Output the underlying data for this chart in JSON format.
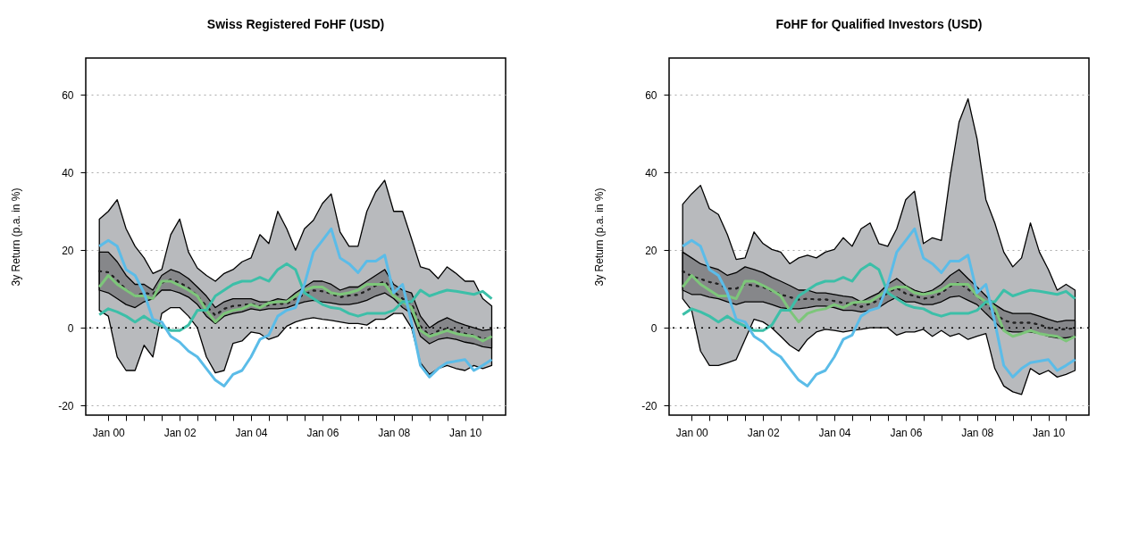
{
  "chart_data": [
    {
      "type": "line",
      "title": "Swiss Registered FoHF (USD)",
      "ylabel": "3y Return (p.a. in %)",
      "x": [
        "1999-10",
        "2000-01",
        "2000-04",
        "2000-07",
        "2000-10",
        "2001-01",
        "2001-04",
        "2001-07",
        "2001-10",
        "2002-01",
        "2002-04",
        "2002-07",
        "2002-10",
        "2003-01",
        "2003-04",
        "2003-07",
        "2003-10",
        "2004-01",
        "2004-04",
        "2004-07",
        "2004-10",
        "2005-01",
        "2005-04",
        "2005-07",
        "2005-10",
        "2006-01",
        "2006-04",
        "2006-07",
        "2006-10",
        "2007-01",
        "2007-04",
        "2007-07",
        "2007-10",
        "2008-01",
        "2008-04",
        "2008-07",
        "2008-10",
        "2009-01",
        "2009-04",
        "2009-07",
        "2009-10",
        "2010-01",
        "2010-04",
        "2010-07",
        "2010-10"
      ],
      "xlim": [
        "1999-05-15",
        "2011-02-20"
      ],
      "xticks": [
        {
          "value": "2000-01",
          "label": "Jan 00"
        },
        {
          "value": "2000-07",
          "label": null
        },
        {
          "value": "2001-01",
          "label": null
        },
        {
          "value": "2001-07",
          "label": null
        },
        {
          "value": "2002-01",
          "label": "Jan 02"
        },
        {
          "value": "2002-07",
          "label": null
        },
        {
          "value": "2003-01",
          "label": null
        },
        {
          "value": "2003-07",
          "label": null
        },
        {
          "value": "2004-01",
          "label": "Jan 04"
        },
        {
          "value": "2004-07",
          "label": null
        },
        {
          "value": "2005-01",
          "label": null
        },
        {
          "value": "2005-07",
          "label": null
        },
        {
          "value": "2006-01",
          "label": "Jan 06"
        },
        {
          "value": "2006-07",
          "label": null
        },
        {
          "value": "2007-01",
          "label": null
        },
        {
          "value": "2007-07",
          "label": null
        },
        {
          "value": "2008-01",
          "label": "Jan 08"
        },
        {
          "value": "2008-07",
          "label": null
        },
        {
          "value": "2009-01",
          "label": null
        },
        {
          "value": "2009-07",
          "label": null
        },
        {
          "value": "2010-01",
          "label": "Jan 10"
        },
        {
          "value": "2010-07",
          "label": null
        }
      ],
      "ylim": [
        -22.5,
        69.5
      ],
      "yticks": [
        -20,
        0,
        20,
        40,
        60
      ],
      "grid": "y",
      "ref_lines": [
        {
          "axis": "y",
          "value": 0,
          "color": "#000000",
          "line_style": "dotted"
        }
      ],
      "series": [
        {
          "color": "#222222",
          "line_style": "dotted",
          "values": [
            14.6,
            14.3,
            12.3,
            9.8,
            8.2,
            9,
            8.6,
            11.6,
            12.4,
            11.6,
            10.3,
            8.2,
            5.6,
            3.2,
            4.9,
            5.6,
            5.8,
            6.2,
            5.6,
            5.8,
            6.2,
            6.2,
            7.5,
            8.6,
            9.6,
            9.4,
            8.8,
            7.9,
            8.3,
            8.5,
            9.6,
            10.9,
            12,
            9.4,
            7.5,
            6.4,
            0.4,
            -2,
            -0.8,
            -0.2,
            -0.8,
            -1.5,
            -2,
            -2.8,
            -2.8
          ],
          "upper": [
            28,
            30,
            33,
            25.5,
            21,
            18,
            14,
            15,
            24,
            28,
            19.5,
            15.4,
            13.5,
            12,
            14,
            15,
            17,
            18,
            24,
            21.7,
            30,
            25.5,
            20,
            25.5,
            27.7,
            32,
            34.5,
            24.7,
            21,
            21,
            30,
            35,
            38,
            30,
            30,
            23,
            15.7,
            15,
            12.7,
            15.7,
            14,
            12,
            12,
            7.5,
            5.6
          ],
          "lower": [
            4.5,
            3,
            -7.5,
            -11,
            -11,
            -4.5,
            -7.5,
            3.7,
            5.2,
            5.2,
            3,
            0,
            -7.5,
            -11.6,
            -11,
            -4,
            -3.4,
            -1.1,
            -1.5,
            -3,
            -2.2,
            0.4,
            1.5,
            2.2,
            2.6,
            2.2,
            1.9,
            1.5,
            1.1,
            1.1,
            0.7,
            2.2,
            2.2,
            3.7,
            3.7,
            0,
            -9,
            -12,
            -10.5,
            -9.7,
            -10.5,
            -11,
            -9.7,
            -10.5,
            -9.7
          ]
        },
        {
          "color": "#222222",
          "line_style": "dotted",
          "values": [
            14.6,
            14.3,
            12.3,
            9.8,
            8.2,
            9,
            8.6,
            11.6,
            12.4,
            11.6,
            10.3,
            8.2,
            5.6,
            3.2,
            4.9,
            5.6,
            5.8,
            6.2,
            5.6,
            5.8,
            6.2,
            6.2,
            7.5,
            8.6,
            9.6,
            9.4,
            8.8,
            7.9,
            8.3,
            8.5,
            9.6,
            10.9,
            12,
            9.4,
            7.5,
            6.4,
            0.4,
            -2,
            -0.8,
            -0.2,
            -0.8,
            -1.5,
            -2,
            -2.8,
            -2.8
          ],
          "upper": [
            19.5,
            19.5,
            17,
            13.5,
            11.2,
            11.2,
            9.7,
            13.5,
            15,
            14.2,
            12.7,
            10.5,
            8.2,
            5.2,
            6.7,
            7.5,
            7.5,
            7.5,
            6.7,
            6.7,
            7.5,
            7.1,
            9,
            10.5,
            12,
            12,
            11.2,
            9.7,
            10.5,
            10.5,
            12,
            13.5,
            15,
            11.2,
            9.7,
            9,
            3,
            0,
            1.5,
            2.6,
            1.5,
            0.7,
            0,
            -0.7,
            -0.4
          ],
          "lower": [
            9.7,
            9,
            7.5,
            6,
            5.2,
            6.7,
            7.5,
            9.7,
            9.7,
            9,
            7.9,
            6,
            3,
            1.1,
            3,
            3.7,
            4.1,
            4.9,
            4.5,
            4.9,
            4.9,
            5.2,
            6,
            6.7,
            7.1,
            6.7,
            6.4,
            6,
            6,
            6.4,
            7.1,
            8.2,
            9,
            7.5,
            5.2,
            3.7,
            -2.2,
            -4.1,
            -3,
            -2.6,
            -3,
            -3.7,
            -4.1,
            -4.9,
            -5.2
          ]
        },
        {
          "color": "#7dc67a",
          "values": [
            10.5,
            13.5,
            11.2,
            9.7,
            8.2,
            8.2,
            7.5,
            12,
            12,
            10.9,
            9.7,
            8.2,
            4.5,
            1.5,
            3.7,
            4.5,
            4.9,
            6,
            5.2,
            6.4,
            6.7,
            6.7,
            8.2,
            9.7,
            10.5,
            10.5,
            9,
            8.6,
            9,
            9.7,
            11.2,
            11.2,
            11.2,
            8.2,
            6.7,
            5.2,
            -0.7,
            -2.2,
            -1.5,
            -0.7,
            -1.5,
            -1.9,
            -2.2,
            -3.4,
            -2.2
          ]
        },
        {
          "color": "#3cbfa8",
          "values": [
            3.4,
            4.9,
            4.1,
            3,
            1.5,
            3,
            1.5,
            0.4,
            -0.7,
            -0.7,
            0.7,
            4.5,
            4.5,
            8.2,
            9.7,
            11.2,
            12,
            12,
            13,
            12,
            15,
            16.5,
            15,
            9,
            7.5,
            6,
            5.2,
            4.9,
            3.7,
            3,
            3.7,
            3.7,
            3.7,
            4.5,
            6.7,
            6.7,
            9.7,
            8.2,
            9,
            9.7,
            9.4,
            9,
            8.6,
            9.4,
            7.5
          ]
        },
        {
          "color": "#5bbce8",
          "values": [
            21,
            22.5,
            21,
            15,
            13.5,
            9,
            2.2,
            1.5,
            -2.2,
            -3.7,
            -6,
            -7.5,
            -10.5,
            -13.5,
            -15,
            -12,
            -11,
            -7.5,
            -3,
            -1.9,
            3,
            4.5,
            5.2,
            11.2,
            19.5,
            22.5,
            25.5,
            18,
            16.5,
            14.2,
            17.2,
            17.2,
            18.7,
            9,
            11.2,
            1.5,
            -9.7,
            -12.7,
            -10.5,
            -9,
            -8.6,
            -8.2,
            -11,
            -9.7,
            -8.2
          ]
        }
      ]
    },
    {
      "type": "line",
      "title": "FoHF for Qualified Investors (USD)",
      "ylabel": "3y Return (p.a. in %)",
      "x": [
        "1999-10",
        "2000-01",
        "2000-04",
        "2000-07",
        "2000-10",
        "2001-01",
        "2001-04",
        "2001-07",
        "2001-10",
        "2002-01",
        "2002-04",
        "2002-07",
        "2002-10",
        "2003-01",
        "2003-04",
        "2003-07",
        "2003-10",
        "2004-01",
        "2004-04",
        "2004-07",
        "2004-10",
        "2005-01",
        "2005-04",
        "2005-07",
        "2005-10",
        "2006-01",
        "2006-04",
        "2006-07",
        "2006-10",
        "2007-01",
        "2007-04",
        "2007-07",
        "2007-10",
        "2008-01",
        "2008-04",
        "2008-07",
        "2008-10",
        "2009-01",
        "2009-04",
        "2009-07",
        "2009-10",
        "2010-01",
        "2010-04",
        "2010-07",
        "2010-10"
      ],
      "xlim": [
        "1999-05-15",
        "2011-02-20"
      ],
      "xticks": [
        {
          "value": "2000-01",
          "label": "Jan 00"
        },
        {
          "value": "2000-07",
          "label": null
        },
        {
          "value": "2001-01",
          "label": null
        },
        {
          "value": "2001-07",
          "label": null
        },
        {
          "value": "2002-01",
          "label": "Jan 02"
        },
        {
          "value": "2002-07",
          "label": null
        },
        {
          "value": "2003-01",
          "label": null
        },
        {
          "value": "2003-07",
          "label": null
        },
        {
          "value": "2004-01",
          "label": "Jan 04"
        },
        {
          "value": "2004-07",
          "label": null
        },
        {
          "value": "2005-01",
          "label": null
        },
        {
          "value": "2005-07",
          "label": null
        },
        {
          "value": "2006-01",
          "label": "Jan 06"
        },
        {
          "value": "2006-07",
          "label": null
        },
        {
          "value": "2007-01",
          "label": null
        },
        {
          "value": "2007-07",
          "label": null
        },
        {
          "value": "2008-01",
          "label": "Jan 08"
        },
        {
          "value": "2008-07",
          "label": null
        },
        {
          "value": "2009-01",
          "label": null
        },
        {
          "value": "2009-07",
          "label": null
        },
        {
          "value": "2010-01",
          "label": "Jan 10"
        },
        {
          "value": "2010-07",
          "label": null
        }
      ],
      "ylim": [
        -22.5,
        69.5
      ],
      "yticks": [
        -20,
        0,
        20,
        40,
        60
      ],
      "grid": "y",
      "ref_lines": [
        {
          "axis": "y",
          "value": 0,
          "color": "#000000",
          "line_style": "dotted"
        }
      ],
      "series": [
        {
          "color": "#222222",
          "line_style": "dotted",
          "values": [
            14.6,
            13.3,
            12.6,
            11.8,
            11.3,
            10.1,
            10.1,
            11.2,
            10.9,
            10.5,
            9.5,
            8.6,
            7.9,
            7.3,
            7.5,
            7.3,
            7.3,
            6.9,
            6.4,
            6.2,
            5.4,
            6.2,
            7.1,
            9,
            10.3,
            8.8,
            8.2,
            7.5,
            7.9,
            9,
            10.7,
            11.6,
            9.9,
            8.3,
            6,
            3.8,
            1.9,
            1.3,
            1.3,
            1.3,
            0.8,
            0,
            -0.5,
            -0.3,
            -0.1
          ],
          "upper": [
            31.8,
            34.5,
            36.7,
            30.7,
            29.2,
            24,
            17.6,
            18,
            24.7,
            21.7,
            20.2,
            19.5,
            16.5,
            18,
            18.7,
            18,
            19.5,
            20.2,
            23.2,
            21,
            25.5,
            27,
            21.7,
            21,
            25.5,
            33,
            35.2,
            21.7,
            23.2,
            22.5,
            39,
            53,
            59,
            48.7,
            33,
            27,
            19.5,
            15.7,
            18,
            27,
            19.5,
            15,
            9.7,
            11.2,
            9.7
          ],
          "lower": [
            7.5,
            4.5,
            -6,
            -9.7,
            -9.7,
            -9,
            -8.2,
            -3,
            2.2,
            1.5,
            0,
            -2.2,
            -4.5,
            -6,
            -3,
            -1.1,
            -0.4,
            -0.7,
            -1.1,
            -0.7,
            -0.4,
            0,
            0,
            0,
            -1.9,
            -1.1,
            -1.1,
            -0.4,
            -2.2,
            -0.7,
            -2.2,
            -1.5,
            -3,
            -2.2,
            -1.5,
            -10.5,
            -15,
            -16.5,
            -17.2,
            -10.5,
            -12,
            -11,
            -12.7,
            -12,
            -11
          ]
        },
        {
          "color": "#222222",
          "line_style": "dotted",
          "values": [
            14.6,
            13.3,
            12.6,
            11.8,
            11.3,
            10.1,
            10.1,
            11.2,
            10.9,
            10.5,
            9.5,
            8.6,
            7.9,
            7.3,
            7.5,
            7.3,
            7.3,
            6.9,
            6.4,
            6.2,
            5.4,
            6.2,
            7.1,
            9,
            10.3,
            8.8,
            8.2,
            7.5,
            7.9,
            9,
            10.7,
            11.6,
            9.9,
            8.3,
            6,
            3.8,
            1.9,
            1.3,
            1.3,
            1.3,
            0.8,
            0,
            -0.5,
            -0.3,
            -0.1
          ],
          "upper": [
            19.5,
            18,
            16.5,
            15.7,
            15,
            13.5,
            14.2,
            15.7,
            15,
            14.2,
            13,
            12,
            10.9,
            9.7,
            9.7,
            9,
            9,
            8.6,
            8.2,
            7.9,
            6.7,
            7.9,
            9,
            11.2,
            12.7,
            10.9,
            9.7,
            9,
            9.7,
            11.2,
            13.5,
            15,
            12.7,
            10.5,
            8.2,
            6,
            4.5,
            3.7,
            3.7,
            3.7,
            3,
            2.2,
            1.5,
            1.9,
            1.9
          ],
          "lower": [
            9.7,
            8.6,
            8.6,
            7.9,
            7.5,
            6.7,
            6,
            6.7,
            6.7,
            6.7,
            6,
            5.2,
            4.9,
            4.9,
            5.2,
            5.6,
            5.6,
            5.2,
            4.5,
            4.5,
            4.1,
            4.5,
            5.2,
            6.7,
            7.9,
            6.7,
            6.7,
            6,
            6,
            6.7,
            7.9,
            8.2,
            7.1,
            6,
            3.7,
            1.5,
            -0.7,
            -1.1,
            -1.1,
            -1.1,
            -1.5,
            -2.2,
            -2.6,
            -2.6,
            -2.2
          ]
        },
        {
          "color": "#7dc67a",
          "values": [
            10.5,
            13.5,
            11.2,
            9.7,
            8.2,
            8.2,
            7.5,
            12,
            12,
            10.9,
            9.7,
            8.2,
            4.5,
            1.5,
            3.7,
            4.5,
            4.9,
            6,
            5.2,
            6.4,
            6.7,
            6.7,
            8.2,
            9.7,
            10.5,
            10.5,
            9,
            8.6,
            9,
            9.7,
            11.2,
            11.2,
            11.2,
            8.2,
            6.7,
            5.2,
            -0.7,
            -2.2,
            -1.5,
            -0.7,
            -1.5,
            -1.9,
            -2.2,
            -3.4,
            -2.2
          ]
        },
        {
          "color": "#3cbfa8",
          "values": [
            3.4,
            4.9,
            4.1,
            3,
            1.5,
            3,
            1.5,
            0.4,
            -0.7,
            -0.7,
            0.7,
            4.5,
            4.5,
            8.2,
            9.7,
            11.2,
            12,
            12,
            13,
            12,
            15,
            16.5,
            15,
            9,
            7.5,
            6,
            5.2,
            4.9,
            3.7,
            3,
            3.7,
            3.7,
            3.7,
            4.5,
            6.7,
            6.7,
            9.7,
            8.2,
            9,
            9.7,
            9.4,
            9,
            8.6,
            9.4,
            7.5
          ]
        },
        {
          "color": "#5bbce8",
          "values": [
            21,
            22.5,
            21,
            15,
            13.5,
            9,
            2.2,
            1.5,
            -2.2,
            -3.7,
            -6,
            -7.5,
            -10.5,
            -13.5,
            -15,
            -12,
            -11,
            -7.5,
            -3,
            -1.9,
            3,
            4.5,
            5.2,
            11.2,
            19.5,
            22.5,
            25.5,
            18,
            16.5,
            14.2,
            17.2,
            17.2,
            18.7,
            9,
            11.2,
            1.5,
            -9.7,
            -12.7,
            -10.5,
            -9,
            -8.6,
            -8.2,
            -11,
            -9.7,
            -8.2
          ]
        }
      ]
    }
  ]
}
